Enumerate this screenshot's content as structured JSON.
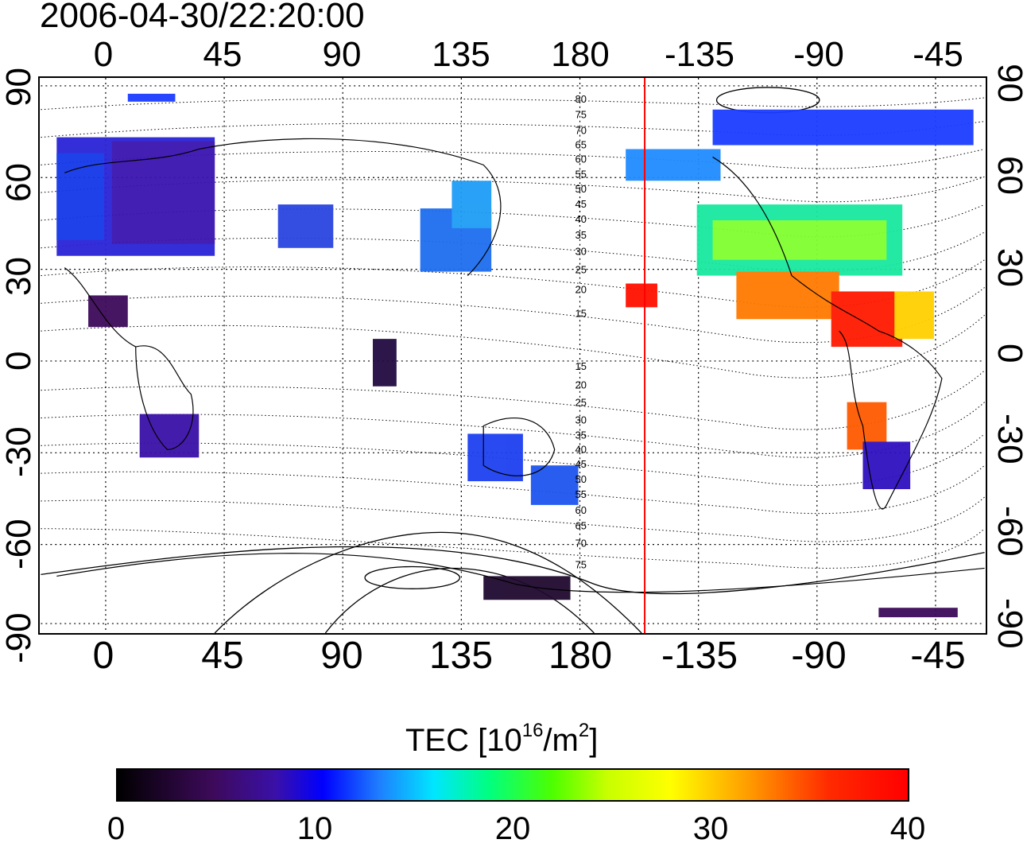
{
  "title": "2006-04-30/22:20:00",
  "top_axis": {
    "labels": [
      "0",
      "45",
      "90",
      "135",
      "180",
      "-135",
      "-90",
      "-45"
    ]
  },
  "bottom_axis": {
    "labels": [
      "0",
      "45",
      "90",
      "135",
      "180",
      "-135",
      "-90",
      "-45"
    ]
  },
  "lat_axis": {
    "labels": [
      "90",
      "60",
      "30",
      "0",
      "-30",
      "-60",
      "-90"
    ]
  },
  "contour_labels": [
    "80",
    "75",
    "70",
    "65",
    "60",
    "55",
    "50",
    "45",
    "40",
    "35",
    "30",
    "25",
    "20",
    "15",
    "15",
    "20",
    "25",
    "30",
    "35",
    "40",
    "45",
    "50",
    "55",
    "60",
    "65",
    "70",
    "75"
  ],
  "colorbar": {
    "title_prefix": "TEC  [10",
    "title_exp1": "16",
    "title_mid": "/m",
    "title_exp2": "2",
    "title_suffix": "]",
    "ticks": [
      "0",
      "10",
      "20",
      "30",
      "40"
    ],
    "range": [
      0,
      40
    ]
  },
  "colors": {
    "meridian_marker": "#ff0000",
    "scale": [
      "#000000",
      "#3d0a5a",
      "#3a10a8",
      "#0000ff",
      "#1e7dff",
      "#00e6ff",
      "#00ff80",
      "#4cff00",
      "#c8ff00",
      "#ffff00",
      "#ff9a00",
      "#ff2a00",
      "#ff0000"
    ]
  }
}
